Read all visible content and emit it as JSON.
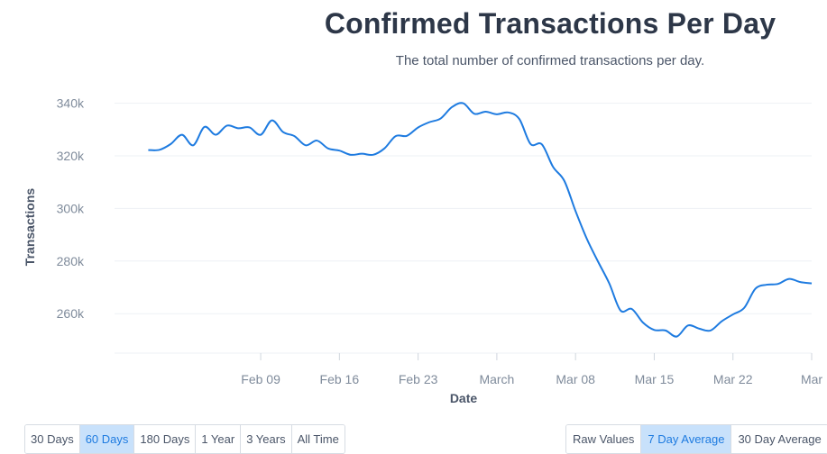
{
  "header": {
    "title": "Confirmed Transactions Per Day",
    "subtitle": "The total number of confirmed transactions per day."
  },
  "timespan_buttons": [
    {
      "label": "30 Days",
      "active": false
    },
    {
      "label": "60 Days",
      "active": true
    },
    {
      "label": "180 Days",
      "active": false
    },
    {
      "label": "1 Year",
      "active": false
    },
    {
      "label": "3 Years",
      "active": false
    },
    {
      "label": "All Time",
      "active": false
    }
  ],
  "average_buttons": [
    {
      "label": "Raw Values",
      "active": false
    },
    {
      "label": "7 Day Average",
      "active": true
    },
    {
      "label": "30 Day Average",
      "active": false
    }
  ],
  "colors": {
    "line": "#1e7be0",
    "grid": "#eef1f5",
    "axis_text": "#7f8b9b",
    "label_text": "#4a5568",
    "active_button_bg": "#c8e1fb"
  },
  "chart_data": {
    "type": "line",
    "title": "Confirmed Transactions Per Day",
    "subtitle": "The total number of confirmed transactions per day.",
    "xlabel": "Date",
    "ylabel": "Transactions",
    "ylim": [
      245000,
      345000
    ],
    "yticks": [
      {
        "value": 260000,
        "label": "260k"
      },
      {
        "value": 280000,
        "label": "280k"
      },
      {
        "value": 300000,
        "label": "300k"
      },
      {
        "value": 320000,
        "label": "320k"
      },
      {
        "value": 340000,
        "label": "340k"
      }
    ],
    "xlim": [
      "2020-01-27",
      "2020-03-29"
    ],
    "xticks": [
      {
        "date": "2020-02-09",
        "label": "Feb 09"
      },
      {
        "date": "2020-02-16",
        "label": "Feb 16"
      },
      {
        "date": "2020-02-23",
        "label": "Feb 23"
      },
      {
        "date": "2020-03-01",
        "label": "March"
      },
      {
        "date": "2020-03-08",
        "label": "Mar 08"
      },
      {
        "date": "2020-03-15",
        "label": "Mar 15"
      },
      {
        "date": "2020-03-22",
        "label": "Mar 22"
      },
      {
        "date": "2020-03-29",
        "label": "Mar"
      }
    ],
    "grid": true,
    "series": [
      {
        "name": "",
        "color": "#1e7be0",
        "x": [
          "2020-01-30",
          "2020-01-31",
          "2020-02-01",
          "2020-02-02",
          "2020-02-03",
          "2020-02-04",
          "2020-02-05",
          "2020-02-06",
          "2020-02-07",
          "2020-02-08",
          "2020-02-09",
          "2020-02-10",
          "2020-02-11",
          "2020-02-12",
          "2020-02-13",
          "2020-02-14",
          "2020-02-15",
          "2020-02-16",
          "2020-02-17",
          "2020-02-18",
          "2020-02-19",
          "2020-02-20",
          "2020-02-21",
          "2020-02-22",
          "2020-02-23",
          "2020-02-24",
          "2020-02-25",
          "2020-02-26",
          "2020-02-27",
          "2020-02-28",
          "2020-02-29",
          "2020-03-01",
          "2020-03-02",
          "2020-03-03",
          "2020-03-04",
          "2020-03-05",
          "2020-03-06",
          "2020-03-07",
          "2020-03-08",
          "2020-03-09",
          "2020-03-10",
          "2020-03-11",
          "2020-03-12",
          "2020-03-13",
          "2020-03-14",
          "2020-03-15",
          "2020-03-16",
          "2020-03-17",
          "2020-03-18",
          "2020-03-19",
          "2020-03-20",
          "2020-03-21",
          "2020-03-22",
          "2020-03-23",
          "2020-03-24",
          "2020-03-25",
          "2020-03-26",
          "2020-03-27",
          "2020-03-28",
          "2020-03-29"
        ],
        "values": [
          322200,
          322300,
          324500,
          328000,
          324000,
          331000,
          328000,
          331500,
          330500,
          330800,
          328000,
          333500,
          329000,
          327500,
          324000,
          325800,
          322800,
          322000,
          320400,
          320800,
          320400,
          322800,
          327500,
          327600,
          330800,
          332800,
          334200,
          338500,
          340000,
          336000,
          336800,
          335800,
          336500,
          334000,
          324500,
          324400,
          315800,
          310500,
          299000,
          288500,
          279800,
          271500,
          261200,
          261800,
          256600,
          253800,
          253600,
          251300,
          255500,
          254300,
          253600,
          257100,
          259700,
          262200,
          269500,
          271000,
          271300,
          273200,
          272000,
          271500
        ]
      }
    ]
  }
}
